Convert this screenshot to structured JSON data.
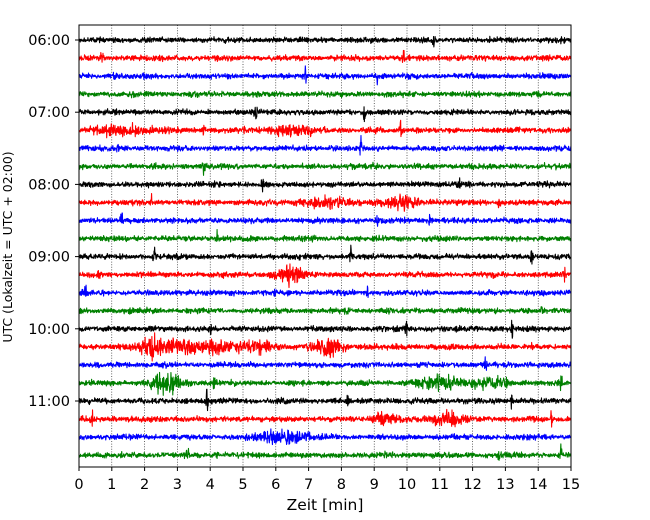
{
  "chart_data": {
    "type": "helicorder",
    "xlabel": "Zeit  [min]",
    "ylabel": "UTC (Lokalzeit = UTC + 02:00)",
    "xlim": [
      0,
      15
    ],
    "x_ticks": [
      "0",
      "1",
      "2",
      "3",
      "4",
      "5",
      "6",
      "7",
      "8",
      "9",
      "10",
      "11",
      "12",
      "13",
      "14",
      "15"
    ],
    "y_ticks": [
      "06:00",
      "07:00",
      "08:00",
      "09:00",
      "10:00",
      "11:00"
    ],
    "grid": "vertical dotted lines at every minute",
    "trace_interval_minutes": 15,
    "start_time": "06:00",
    "color_cycle": [
      "#000000",
      "#ff0000",
      "#0000ff",
      "#008000"
    ],
    "rows": [
      {
        "start": "06:00",
        "color": "#000000",
        "events": [
          [
            10.8,
            1.6
          ]
        ],
        "bursts": []
      },
      {
        "start": "06:15",
        "color": "#ff0000",
        "events": [
          [
            0.7,
            1.0
          ],
          [
            9.9,
            0.9
          ]
        ],
        "bursts": []
      },
      {
        "start": "06:30",
        "color": "#0000ff",
        "events": [
          [
            1.1,
            1.6
          ],
          [
            6.9,
            1.4
          ],
          [
            9.1,
            1.0
          ]
        ],
        "bursts": []
      },
      {
        "start": "06:45",
        "color": "#008000",
        "events": [],
        "bursts": []
      },
      {
        "start": "07:00",
        "color": "#000000",
        "events": [
          [
            5.4,
            2.0
          ],
          [
            8.7,
            1.6
          ]
        ],
        "bursts": []
      },
      {
        "start": "07:15",
        "color": "#ff0000",
        "events": [
          [
            3.8,
            1.0
          ],
          [
            9.8,
            1.0
          ]
        ],
        "bursts": [
          [
            1.5,
            2.0,
            1.3
          ],
          [
            6.5,
            2.0,
            1.2
          ]
        ]
      },
      {
        "start": "07:30",
        "color": "#0000ff",
        "events": [
          [
            1.2,
            1.6
          ],
          [
            8.6,
            1.6
          ]
        ],
        "bursts": []
      },
      {
        "start": "07:45",
        "color": "#008000",
        "events": [
          [
            3.8,
            1.6
          ],
          [
            9.0,
            1.0
          ]
        ],
        "bursts": []
      },
      {
        "start": "08:00",
        "color": "#000000",
        "events": [
          [
            5.6,
            1.2
          ],
          [
            11.6,
            1.4
          ]
        ],
        "bursts": []
      },
      {
        "start": "08:15",
        "color": "#ff0000",
        "events": [
          [
            2.2,
            1.0
          ],
          [
            12.8,
            1.0
          ]
        ],
        "bursts": [
          [
            9.8,
            1.2,
            1.8
          ],
          [
            7.5,
            1.5,
            1.2
          ]
        ]
      },
      {
        "start": "08:30",
        "color": "#0000ff",
        "events": [
          [
            1.3,
            1.6
          ],
          [
            9.1,
            1.0
          ],
          [
            10.7,
            1.0
          ]
        ],
        "bursts": []
      },
      {
        "start": "08:45",
        "color": "#008000",
        "events": [
          [
            4.2,
            1.2
          ]
        ],
        "bursts": []
      },
      {
        "start": "09:00",
        "color": "#000000",
        "events": [
          [
            2.3,
            1.2
          ],
          [
            8.3,
            1.4
          ],
          [
            13.8,
            1.4
          ]
        ],
        "bursts": []
      },
      {
        "start": "09:15",
        "color": "#ff0000",
        "events": [
          [
            0.6,
            1.0
          ],
          [
            14.8,
            1.4
          ]
        ],
        "bursts": [
          [
            6.4,
            0.9,
            2.6
          ]
        ]
      },
      {
        "start": "09:30",
        "color": "#0000ff",
        "events": [
          [
            0.2,
            1.4
          ],
          [
            6.0,
            1.4
          ],
          [
            8.8,
            1.0
          ]
        ],
        "bursts": []
      },
      {
        "start": "09:45",
        "color": "#008000",
        "events": [
          [
            12.7,
            1.0
          ],
          [
            14.1,
            1.0
          ]
        ],
        "bursts": []
      },
      {
        "start": "10:00",
        "color": "#000000",
        "events": [
          [
            2.2,
            1.0
          ],
          [
            4.0,
            1.0
          ],
          [
            10.0,
            1.6
          ],
          [
            13.2,
            1.6
          ]
        ],
        "bursts": []
      },
      {
        "start": "10:15",
        "color": "#ff0000",
        "events": [
          [
            13.8,
            1.0
          ]
        ],
        "bursts": [
          [
            2.3,
            0.9,
            3.6
          ],
          [
            4.2,
            1.4,
            2.2
          ],
          [
            7.6,
            0.9,
            3.0
          ],
          [
            3.2,
            0.8,
            1.6
          ],
          [
            5.5,
            1.0,
            1.5
          ]
        ]
      },
      {
        "start": "10:30",
        "color": "#0000ff",
        "events": [
          [
            12.4,
            1.0
          ]
        ],
        "bursts": []
      },
      {
        "start": "10:45",
        "color": "#008000",
        "events": [
          [
            4.1,
            1.2
          ],
          [
            14.7,
            1.4
          ]
        ],
        "bursts": [
          [
            2.7,
            0.9,
            3.2
          ],
          [
            11.1,
            1.4,
            1.8
          ],
          [
            12.6,
            1.0,
            1.6
          ]
        ]
      },
      {
        "start": "11:00",
        "color": "#000000",
        "events": [
          [
            3.9,
            2.0
          ],
          [
            8.2,
            1.2
          ],
          [
            13.2,
            1.0
          ]
        ],
        "bursts": []
      },
      {
        "start": "11:15",
        "color": "#ff0000",
        "events": [
          [
            0.4,
            1.0
          ],
          [
            14.4,
            1.0
          ]
        ],
        "bursts": [
          [
            9.3,
            0.6,
            2.0
          ],
          [
            11.2,
            0.9,
            2.4
          ]
        ]
      },
      {
        "start": "11:30",
        "color": "#0000ff",
        "events": [],
        "bursts": [
          [
            6.3,
            1.4,
            1.8
          ]
        ]
      },
      {
        "start": "11:45",
        "color": "#008000",
        "events": [
          [
            3.3,
            1.2
          ],
          [
            4.2,
            1.0
          ],
          [
            12.8,
            1.0
          ],
          [
            14.7,
            1.2
          ]
        ],
        "bursts": []
      }
    ]
  }
}
